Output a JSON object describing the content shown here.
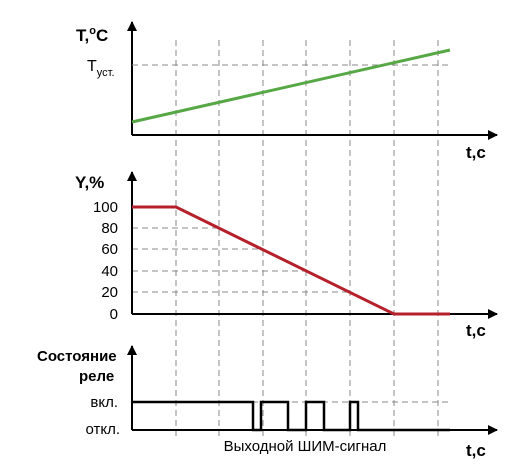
{
  "diagram": {
    "temperature_panel": {
      "axis_label_main": "T,",
      "axis_label_deg": "o",
      "axis_label_unit": "C",
      "setpoint_main": "T",
      "setpoint_sub": "уст.",
      "time_label": "t,c",
      "line_color": "#56a845"
    },
    "output_panel": {
      "axis_label": "Y,%",
      "ticks": [
        "100",
        "80",
        "60",
        "40",
        "20",
        "0"
      ],
      "time_label": "t,c",
      "line_color": "#b5202a"
    },
    "relay_panel": {
      "axis_label_line1": "Состояние",
      "axis_label_line2": "реле",
      "state_on": "вкл.",
      "state_off": "откл.",
      "caption": "Выходной ШИМ-сигнал",
      "time_label": "t,c"
    }
  }
}
